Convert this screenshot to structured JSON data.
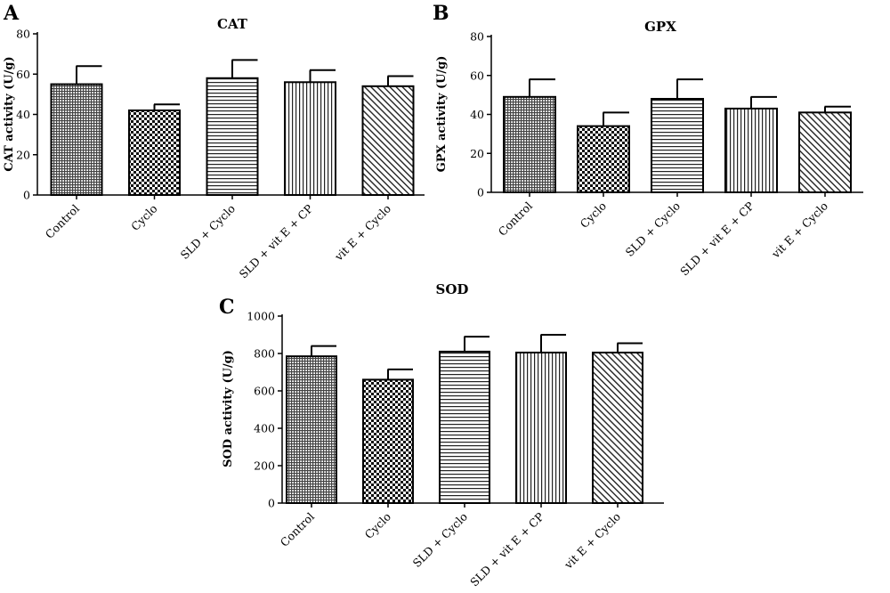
{
  "chart_data": [
    {
      "panel": "A",
      "type": "bar",
      "title": "CAT",
      "ylabel": "CAT activity (U/g)",
      "xlabel": "",
      "categories": [
        "Control",
        "Cyclo",
        "SLD + Cyclo",
        "SLD + vit E + CP",
        "vit E + Cyclo"
      ],
      "values": [
        55,
        42,
        58,
        56,
        54
      ],
      "errors": [
        9,
        3,
        9,
        6,
        5
      ],
      "patterns": [
        "grid",
        "checker",
        "horizontal",
        "vertical",
        "diagonal"
      ],
      "ylim": [
        0,
        80
      ],
      "yticks": [
        0,
        20,
        40,
        60,
        80
      ],
      "grid": false
    },
    {
      "panel": "B",
      "type": "bar",
      "title": "GPX",
      "ylabel": "GPX activity (U/g)",
      "xlabel": "",
      "categories": [
        "Control",
        "Cyclo",
        "SLD + Cyclo",
        "SLD + vit E + CP",
        "vit E + Cyclo"
      ],
      "values": [
        49,
        34,
        48,
        43,
        41
      ],
      "errors": [
        9,
        7,
        10,
        6,
        3
      ],
      "patterns": [
        "grid",
        "checker",
        "horizontal",
        "vertical",
        "diagonal"
      ],
      "ylim": [
        0,
        80
      ],
      "yticks": [
        0,
        20,
        40,
        60,
        80
      ],
      "grid": false
    },
    {
      "panel": "C",
      "type": "bar",
      "title": "SOD",
      "ylabel": "SOD activity (U/g)",
      "xlabel": "",
      "categories": [
        "Control",
        "Cyclo",
        "SLD + Cyclo",
        "SLD + vit E + CP",
        "vit E + Cyclo"
      ],
      "values": [
        785,
        660,
        810,
        805,
        805
      ],
      "errors": [
        55,
        55,
        80,
        95,
        50
      ],
      "patterns": [
        "grid",
        "checker",
        "horizontal",
        "vertical",
        "diagonal"
      ],
      "ylim": [
        0,
        1000
      ],
      "yticks": [
        0,
        200,
        400,
        600,
        800,
        1000
      ],
      "grid": false
    }
  ]
}
